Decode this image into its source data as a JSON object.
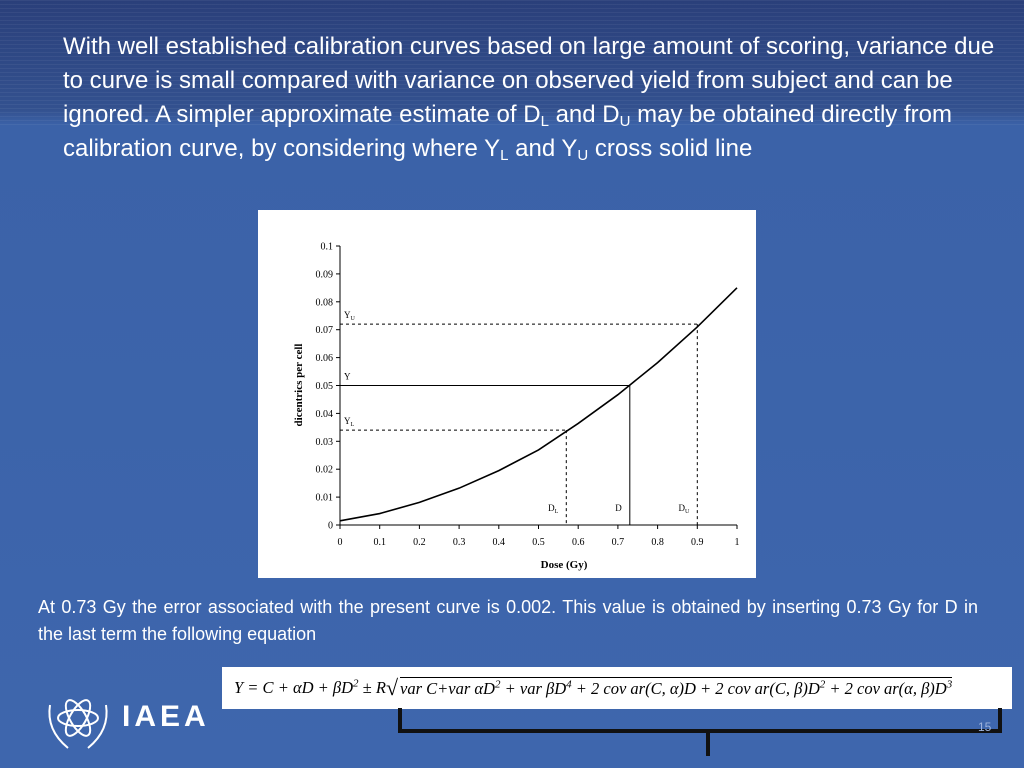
{
  "heading": [
    "With well established calibration curves based on large amount of scoring, variance due to curve is small compared with variance on observed yield from subject and can be ignored. A simpler approximate estimate of D",
    "L",
    " and D",
    "U",
    " may be obtained directly from  calibration curve, by considering where Y",
    "L",
    " and Y",
    "U",
    " cross  solid line"
  ],
  "chart_data": {
    "type": "line",
    "xlabel": "Dose (Gy)",
    "ylabel": "dicentrics per cell",
    "x": [
      0,
      0.1,
      0.2,
      0.3,
      0.4,
      0.5,
      0.6,
      0.7,
      0.8,
      0.9,
      1
    ],
    "values": [
      0.0015,
      0.0041,
      0.0081,
      0.0132,
      0.0195,
      0.0269,
      0.0364,
      0.0467,
      0.0582,
      0.071,
      0.085
    ],
    "color": "#000000",
    "xlim": [
      0,
      1
    ],
    "xticks": [
      0,
      0.1,
      0.2,
      0.3,
      0.4,
      0.5,
      0.6,
      0.7,
      0.8,
      0.9,
      1
    ],
    "ylim": [
      0,
      0.1
    ],
    "yticks": [
      0,
      0.01,
      0.02,
      0.03,
      0.04,
      0.05,
      0.06,
      0.07,
      0.08,
      0.09,
      0.1
    ],
    "levels": [
      {
        "y_label": "Y",
        "y_sub": "U",
        "y": 0.072,
        "x_label": "D",
        "x_sub": "U",
        "x": 0.9,
        "style": "dashed"
      },
      {
        "y_label": "Y",
        "y_sub": null,
        "y": 0.05,
        "x_label": "D",
        "x_sub": null,
        "x": 0.73,
        "style": "solid"
      },
      {
        "y_label": "Y",
        "y_sub": "L",
        "y": 0.034,
        "x_label": "D",
        "x_sub": "L",
        "x": 0.57,
        "style": "dashed"
      }
    ]
  },
  "note": "At 0.73 Gy the error associated with the present curve is 0.002. This value is obtained by inserting 0.73 Gy for D in the last term the following equation",
  "equation": {
    "lhs": [
      "Y = C + αD + βD",
      "2",
      " ± R"
    ],
    "radicand": [
      "var C+var αD",
      "2",
      " + var βD",
      "4",
      " + 2 cov ar(C, α)D + 2 cov ar(C, β)D",
      "2",
      " + 2 cov ar(α, β)D",
      "3"
    ]
  },
  "logo": "IAEA",
  "page_number": "15"
}
